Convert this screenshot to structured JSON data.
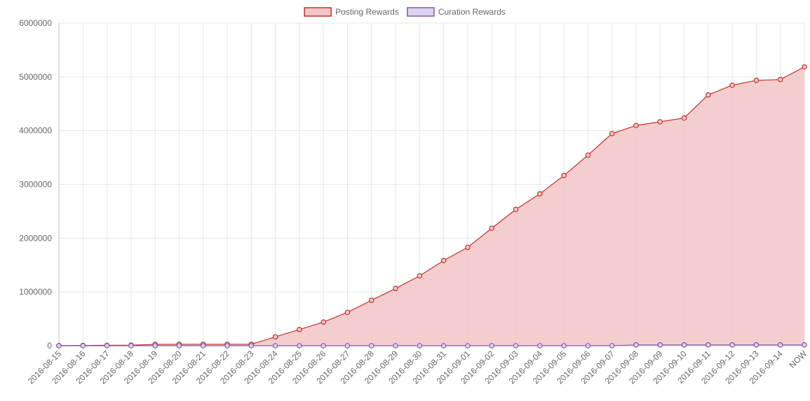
{
  "chart_data": {
    "type": "area",
    "categories": [
      "2016-08-15",
      "2016-08-16",
      "2016-08-17",
      "2016-08-18",
      "2016-08-19",
      "2016-08-20",
      "2016-08-21",
      "2016-08-22",
      "2016-08-23",
      "2016-08-24",
      "2016-08-25",
      "2016-08-26",
      "2016-08-27",
      "2016-08-28",
      "2016-08-29",
      "2016-08-30",
      "2016-08-31",
      "2016-09-01",
      "2016-09-02",
      "2016-09-03",
      "2016-09-04",
      "2016-09-05",
      "2016-09-06",
      "2016-09-07",
      "2016-09-08",
      "2016-09-09",
      "2016-09-10",
      "2016-09-11",
      "2016-09-12",
      "2016-09-13",
      "2016-09-14",
      "NOW"
    ],
    "series": [
      {
        "name": "Posting Rewards",
        "color": "#c9302c",
        "fill": "#f2c6c6",
        "values": [
          2000,
          5000,
          8000,
          10000,
          25000,
          27000,
          27000,
          27000,
          27000,
          165000,
          300000,
          440000,
          620000,
          845000,
          1065000,
          1300000,
          1585000,
          1830000,
          2185000,
          2535000,
          2825000,
          3165000,
          3545000,
          3945000,
          4095000,
          4165000,
          4235000,
          4665000,
          4845000,
          4935000,
          4950000,
          5185000
        ]
      },
      {
        "name": "Curation Rewards",
        "color": "#7b5ea7",
        "fill": "#ddd2ee",
        "values": [
          0,
          0,
          0,
          0,
          0,
          0,
          0,
          0,
          0,
          0,
          0,
          0,
          0,
          0,
          0,
          0,
          0,
          0,
          0,
          0,
          0,
          0,
          0,
          0,
          15000,
          15000,
          15000,
          15000,
          15000,
          15000,
          15000,
          15000
        ]
      }
    ],
    "ylim": [
      0,
      6000000
    ],
    "yticks": [
      "0",
      "1000000",
      "2000000",
      "3000000",
      "4000000",
      "5000000",
      "6000000"
    ],
    "grid": true,
    "legend": "top-center"
  }
}
